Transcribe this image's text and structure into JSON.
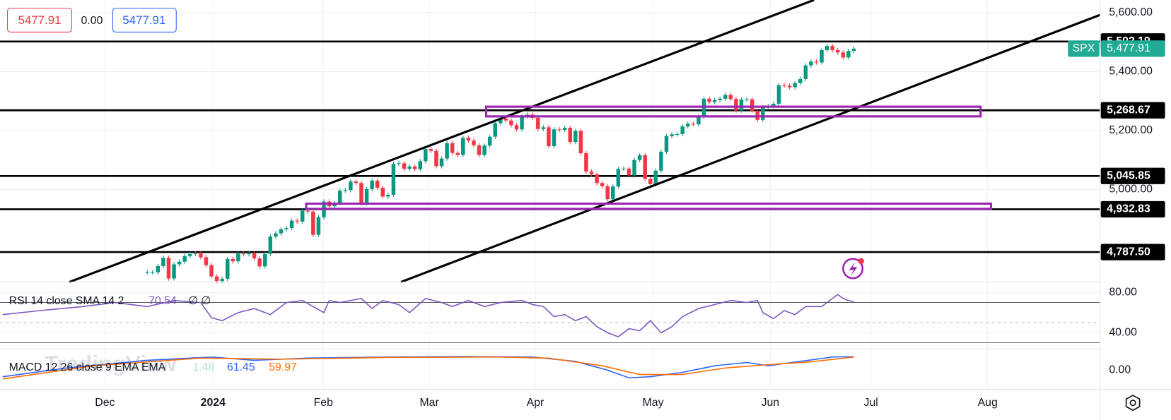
{
  "chart_data": {
    "type": "candlestick",
    "symbol": "SPX",
    "watermark": "TradingView",
    "order_panel": {
      "sell": "5477.91",
      "spread": "0.00",
      "buy": "5477.91"
    },
    "up_color": "#089981",
    "down_color": "#f23645",
    "close": [
      4719,
      4719,
      4740,
      4768,
      4698,
      4746,
      4755,
      4774,
      4781,
      4783,
      4770,
      4743,
      4705,
      4689,
      4697,
      4764,
      4756,
      4783,
      4780,
      4784,
      4766,
      4739,
      4781,
      4840,
      4851,
      4865,
      4869,
      4894,
      4891,
      4928,
      4925,
      4846,
      4906,
      4959,
      4943,
      4954,
      4996,
      4998,
      5027,
      5022,
      4953,
      5001,
      5030,
      5006,
      4976,
      4982,
      5087,
      5089,
      5070,
      5078,
      5069,
      5096,
      5137,
      5131,
      5079,
      5105,
      5157,
      5124,
      5117,
      5175,
      5166,
      5150,
      5117,
      5149,
      5179,
      5225,
      5241,
      5234,
      5218,
      5204,
      5248,
      5254,
      5243,
      5205,
      5211,
      5147,
      5204,
      5202,
      5209,
      5161,
      5199,
      5123,
      5061,
      5051,
      5022,
      5011,
      4967,
      5010,
      5070,
      5071,
      5048,
      5100,
      5116,
      5036,
      5018,
      5064,
      5128,
      5181,
      5187,
      5188,
      5214,
      5223,
      5221,
      5247,
      5308,
      5297,
      5303,
      5308,
      5321,
      5307,
      5268,
      5305,
      5306,
      5267,
      5236,
      5278,
      5283,
      5291,
      5354,
      5352,
      5347,
      5361,
      5375,
      5421,
      5434,
      5431,
      5473,
      5487,
      5473,
      5465,
      5448,
      5470,
      5478
    ],
    "xlim": [
      -27.5,
      178
    ],
    "xticks": [
      {
        "value": -7.9,
        "label": "Dec"
      },
      {
        "value": 12.3,
        "label": "2024"
      },
      {
        "value": 32.9,
        "label": "Feb"
      },
      {
        "value": 52.7,
        "label": "Mar"
      },
      {
        "value": 72.5,
        "label": "Apr"
      },
      {
        "value": 94.5,
        "label": "May"
      },
      {
        "value": 116.4,
        "label": "Jun"
      },
      {
        "value": 135.2,
        "label": "Jul"
      },
      {
        "value": 157,
        "label": "Aug"
      }
    ],
    "ylim": [
      4686,
      5643
    ],
    "yticks": [
      {
        "value": 5600,
        "label": "5,600.00"
      },
      {
        "value": 5400,
        "label": "5,400.00"
      },
      {
        "value": 5200,
        "label": "5,200.00"
      },
      {
        "value": 5000,
        "label": "5,000.00"
      }
    ],
    "levels": [
      {
        "value": 5502.19,
        "label": "5,502.19"
      },
      {
        "value": 5268.67,
        "label": "5,268.67"
      },
      {
        "value": 5045.85,
        "label": "5,045.85"
      },
      {
        "value": 4932.83,
        "label": "4,932.83"
      },
      {
        "value": 4787.5,
        "label": "4,787.50"
      }
    ],
    "last": {
      "value": 5477.91,
      "label": "5,477.91"
    },
    "rsi": {
      "title": "RSI 14 close SMA 14 2",
      "value_label": "70.54",
      "extra": "∅ ∅",
      "color": "#7e57c2",
      "ylim": [
        23.7,
        90.4
      ],
      "yticks": [
        {
          "value": 80,
          "label": "80.00"
        },
        {
          "value": 40,
          "label": "40.00"
        }
      ],
      "bands": [
        70,
        30
      ],
      "midline": 50,
      "x": [
        -27,
        -20,
        -12,
        -6,
        0,
        5,
        10,
        12,
        14,
        17,
        20,
        23,
        26,
        29,
        31,
        33,
        34,
        36,
        40,
        42,
        44,
        47,
        49,
        52,
        55,
        57,
        60,
        63,
        66,
        70,
        72,
        74,
        76,
        78,
        80,
        82,
        84,
        86,
        88,
        90,
        92,
        94,
        96,
        98,
        100,
        103,
        106,
        109,
        112,
        114,
        115,
        117,
        119,
        121,
        123,
        126,
        128,
        129,
        130,
        131,
        132
      ],
      "values": [
        58,
        62,
        66,
        70,
        66,
        72,
        70,
        55,
        52,
        60,
        64,
        58,
        70,
        72,
        66,
        60,
        72,
        70,
        74,
        64,
        72,
        68,
        60,
        74,
        70,
        66,
        72,
        66,
        70,
        72,
        68,
        66,
        56,
        58,
        52,
        56,
        46,
        40,
        36,
        44,
        42,
        52,
        40,
        46,
        56,
        64,
        68,
        72,
        70,
        72,
        60,
        54,
        62,
        58,
        66,
        66,
        74,
        78,
        74,
        72,
        71
      ]
    },
    "macd": {
      "title": "MACD 12 26 close 9 EMA EMA",
      "readouts": [
        "1.48",
        "61.45",
        "59.97"
      ],
      "readout_colors": [
        "#b2dfdb",
        "#2962ff",
        "#ff6d00"
      ],
      "ylim": [
        -88,
        96
      ],
      "yticks": [
        {
          "value": 0,
          "label": "0.00"
        }
      ],
      "series": [
        {
          "color": "#2962ff",
          "x": [
            -27,
            -15,
            0,
            12,
            20,
            30,
            45,
            60,
            72,
            80,
            86,
            90,
            94,
            100,
            106,
            112,
            116,
            122,
            128,
            132
          ],
          "values": [
            -30,
            10,
            45,
            60,
            45,
            55,
            60,
            62,
            60,
            40,
            0,
            -35,
            -30,
            -10,
            20,
            35,
            20,
            40,
            60,
            61.45
          ]
        },
        {
          "color": "#ff6d00",
          "x": [
            -27,
            -10,
            10,
            25,
            45,
            65,
            75,
            85,
            92,
            100,
            108,
            116,
            124,
            132
          ],
          "values": [
            -40,
            20,
            55,
            50,
            58,
            60,
            55,
            20,
            -20,
            -20,
            10,
            25,
            38,
            59.97
          ]
        }
      ]
    }
  }
}
